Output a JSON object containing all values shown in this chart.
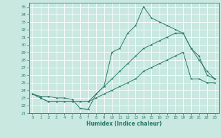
{
  "title": "",
  "xlabel": "Humidex (Indice chaleur)",
  "ylabel": "",
  "xlim": [
    -0.5,
    23.5
  ],
  "ylim": [
    21,
    35.5
  ],
  "xticks": [
    0,
    1,
    2,
    3,
    4,
    5,
    6,
    7,
    8,
    9,
    10,
    11,
    12,
    13,
    14,
    15,
    16,
    17,
    18,
    19,
    20,
    21,
    22,
    23
  ],
  "yticks": [
    21,
    22,
    23,
    24,
    25,
    26,
    27,
    28,
    29,
    30,
    31,
    32,
    33,
    34,
    35
  ],
  "bg_color": "#c8e8e0",
  "grid_color": "#ffffff",
  "line_color": "#2a7a6a",
  "lines": [
    {
      "x": [
        0,
        1,
        2,
        3,
        4,
        5,
        6,
        7,
        8,
        9,
        10,
        11,
        12,
        13,
        14,
        15,
        16,
        17,
        18,
        19,
        20,
        21,
        22,
        23
      ],
      "y": [
        23.5,
        23.2,
        23.2,
        23.0,
        23.0,
        22.8,
        21.6,
        21.5,
        23.5,
        24.5,
        29.0,
        29.5,
        31.5,
        32.5,
        35.0,
        33.5,
        33.0,
        32.5,
        32.0,
        31.5,
        29.5,
        28.5,
        26.0,
        25.5
      ]
    },
    {
      "x": [
        0,
        1,
        2,
        3,
        4,
        5,
        6,
        7,
        8,
        9,
        10,
        11,
        12,
        13,
        14,
        15,
        16,
        17,
        18,
        19,
        20,
        21,
        22,
        23
      ],
      "y": [
        23.5,
        23.0,
        22.5,
        22.5,
        22.5,
        22.5,
        22.5,
        22.5,
        23.5,
        24.5,
        25.5,
        26.5,
        27.5,
        28.5,
        29.5,
        30.0,
        30.5,
        31.0,
        31.5,
        31.5,
        29.5,
        28.0,
        26.5,
        25.5
      ]
    },
    {
      "x": [
        0,
        1,
        2,
        3,
        4,
        5,
        6,
        7,
        8,
        9,
        10,
        11,
        12,
        13,
        14,
        15,
        16,
        17,
        18,
        19,
        20,
        21,
        22,
        23
      ],
      "y": [
        23.5,
        23.0,
        22.5,
        22.5,
        22.5,
        22.5,
        22.5,
        22.5,
        23.0,
        23.5,
        24.0,
        24.5,
        25.0,
        25.5,
        26.5,
        27.0,
        27.5,
        28.0,
        28.5,
        29.0,
        25.5,
        25.5,
        25.0,
        25.0
      ]
    }
  ]
}
